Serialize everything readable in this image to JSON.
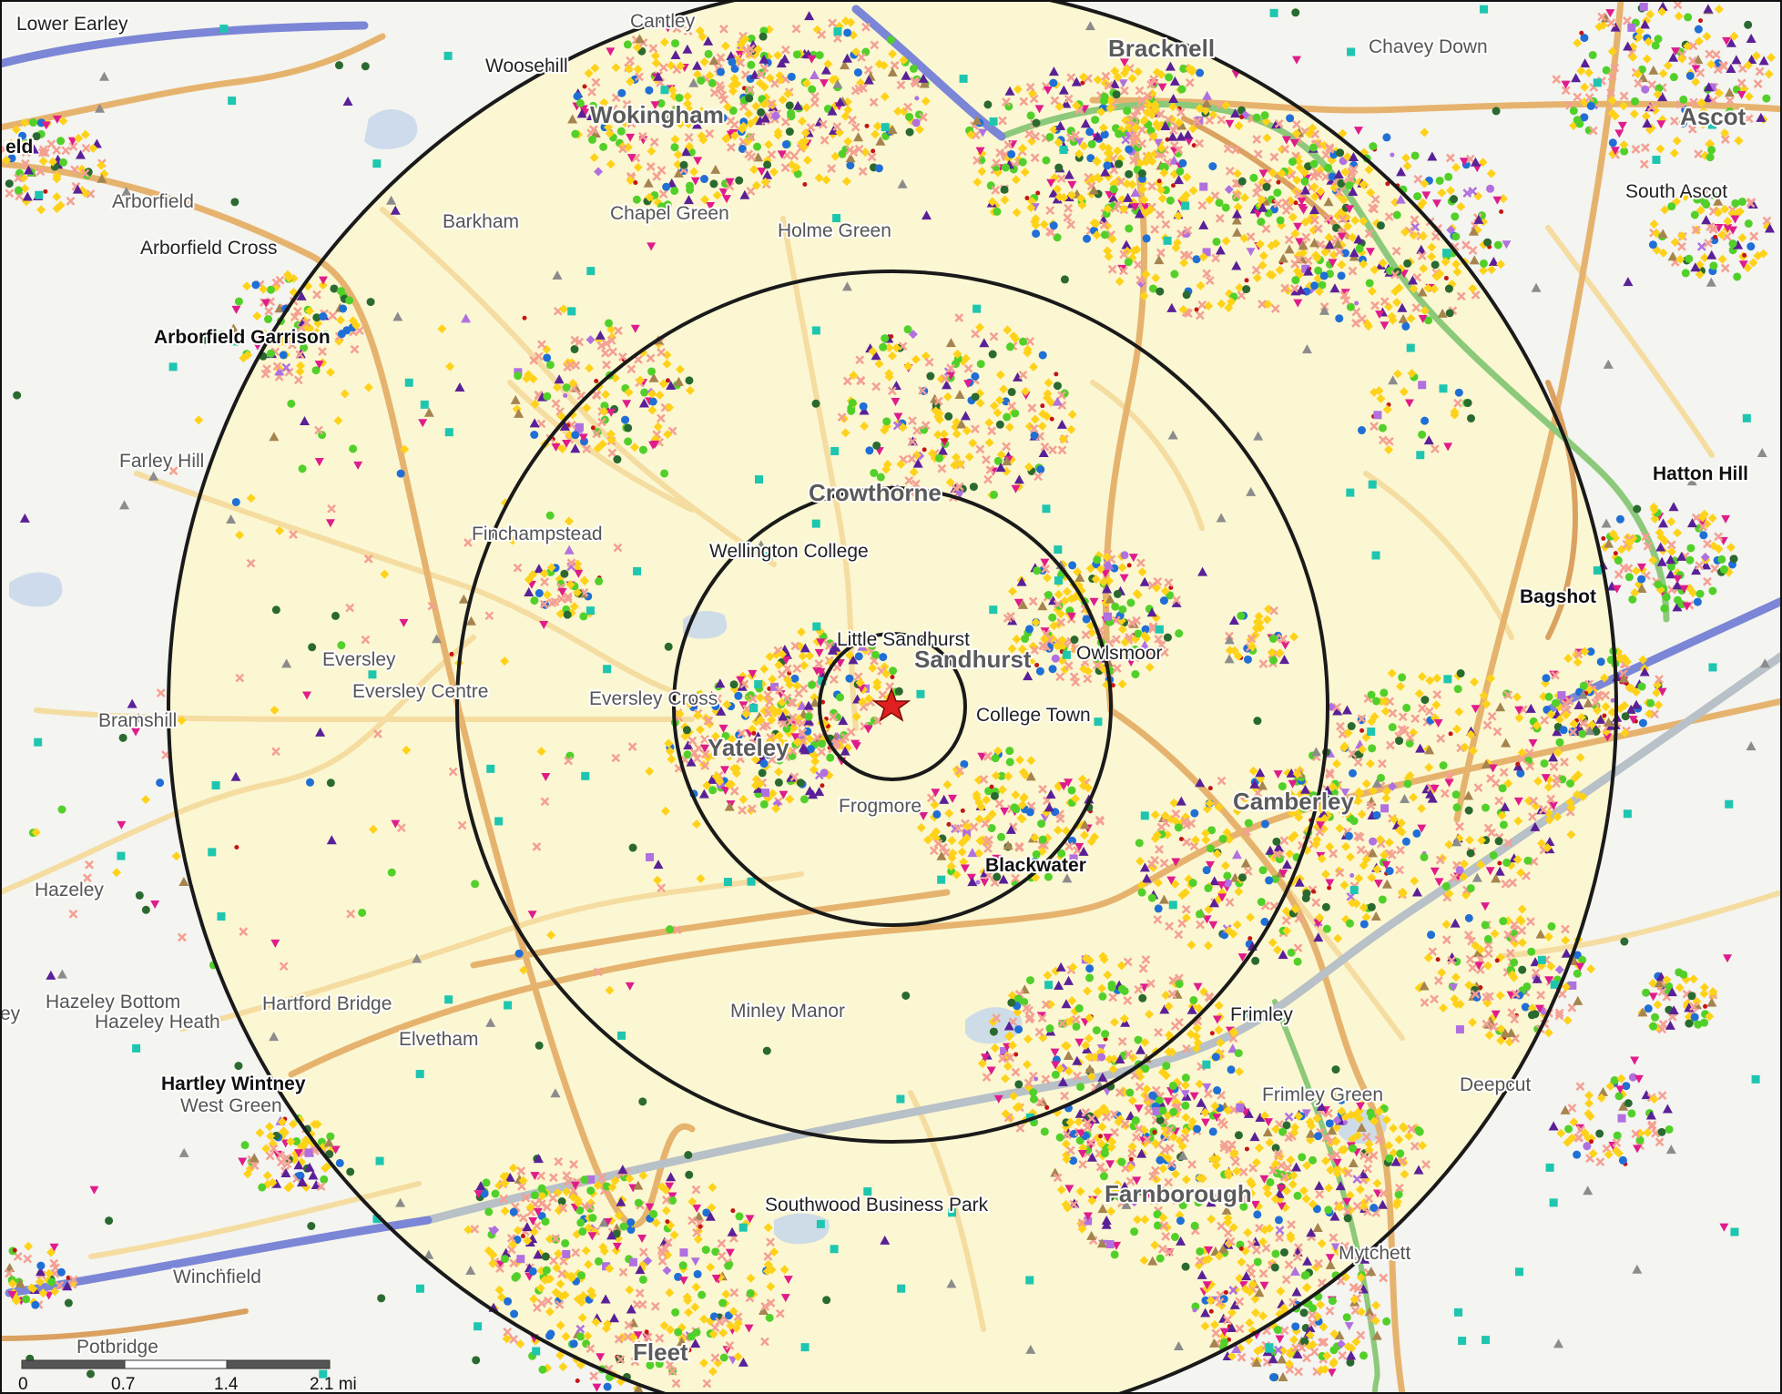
{
  "map": {
    "place_labels": [
      {
        "text": "Lower Earley",
        "style": "dk"
      },
      {
        "text": "Cantley",
        "style": "md"
      },
      {
        "text": "Woosehill",
        "style": "dk"
      },
      {
        "text": "Bracknell",
        "style": "lg"
      },
      {
        "text": "Chavey Down",
        "style": "md"
      },
      {
        "text": "Ascot",
        "style": "lg"
      },
      {
        "text": "Wokingham",
        "style": "lg"
      },
      {
        "text": "eld",
        "style": "bk"
      },
      {
        "text": "South Ascot",
        "style": "dk"
      },
      {
        "text": "Arborfield",
        "style": "md"
      },
      {
        "text": "Barkham",
        "style": "md"
      },
      {
        "text": "Chapel Green",
        "style": "md"
      },
      {
        "text": "Holme Green",
        "style": "md"
      },
      {
        "text": "Arborfield Cross",
        "style": "dk"
      },
      {
        "text": "Arborfield Garrison",
        "style": "bk"
      },
      {
        "text": "Hatton Hill",
        "style": "bk"
      },
      {
        "text": "Farley Hill",
        "style": "md"
      },
      {
        "text": "Crowthorne",
        "style": "lg"
      },
      {
        "text": "Finchampstead",
        "style": "md"
      },
      {
        "text": "Wellington College",
        "style": "dk"
      },
      {
        "text": "Bagshot",
        "style": "bk"
      },
      {
        "text": "Little Sandhurst",
        "style": "dk"
      },
      {
        "text": "Sandhurst",
        "style": "lg"
      },
      {
        "text": "Owlsmoor",
        "style": "dk"
      },
      {
        "text": "Eversley",
        "style": "md"
      },
      {
        "text": "Eversley Centre",
        "style": "md"
      },
      {
        "text": "Eversley Cross",
        "style": "md"
      },
      {
        "text": "College Town",
        "style": "dk"
      },
      {
        "text": "Bramshill",
        "style": "md"
      },
      {
        "text": "Yateley",
        "style": "lg"
      },
      {
        "text": "Camberley",
        "style": "lg"
      },
      {
        "text": "Frogmore",
        "style": "md"
      },
      {
        "text": "Blackwater",
        "style": "bk"
      },
      {
        "text": "Hazeley",
        "style": "md"
      },
      {
        "text": "Hazeley Bottom",
        "style": "md"
      },
      {
        "text": "Hartford Bridge",
        "style": "md"
      },
      {
        "text": "Minley Manor",
        "style": "md"
      },
      {
        "text": "Frimley",
        "style": "dk"
      },
      {
        "text": "Hazeley Heath",
        "style": "md"
      },
      {
        "text": "Elvetham",
        "style": "md"
      },
      {
        "text": "ey",
        "style": "md"
      },
      {
        "text": "Hartley Wintney",
        "style": "bk"
      },
      {
        "text": "Frimley Green",
        "style": "md"
      },
      {
        "text": "Deepcut",
        "style": "md"
      },
      {
        "text": "West Green",
        "style": "md"
      },
      {
        "text": "Southwood Business Park",
        "style": "dk"
      },
      {
        "text": "Farnborough",
        "style": "lg"
      },
      {
        "text": "Mytchett",
        "style": "md"
      },
      {
        "text": "Winchfield",
        "style": "md"
      },
      {
        "text": "Potbridge",
        "style": "md"
      },
      {
        "text": "Fleet",
        "style": "lg"
      }
    ],
    "rings": 4,
    "center_marker": "red-star-icon"
  },
  "scale_bar": {
    "ticks": [
      "0",
      "0.7",
      "1.4",
      "2.1 mi"
    ]
  },
  "colors": {
    "land": "#f4f4f0",
    "radius_fill": "#fbf7d2",
    "ring_stroke": "#1a1a1a",
    "road_minor": "#f5dca0",
    "road_major": "#e6b36e",
    "road_a": "#dba161",
    "motorway": "#7b86d6",
    "railway": "#b8c0c8",
    "green_road": "#8cc97a",
    "water": "#c3d4ec",
    "center_star": "#e02020"
  },
  "poi_legend_colors": [
    "#ffd21a",
    "#f4a093",
    "#52d02a",
    "#5a2098",
    "#e01c8c",
    "#1f6fd6",
    "#a68450",
    "#1ec6b0",
    "#2a6a30",
    "#8c8c8c",
    "#c31616",
    "#b070e0"
  ]
}
